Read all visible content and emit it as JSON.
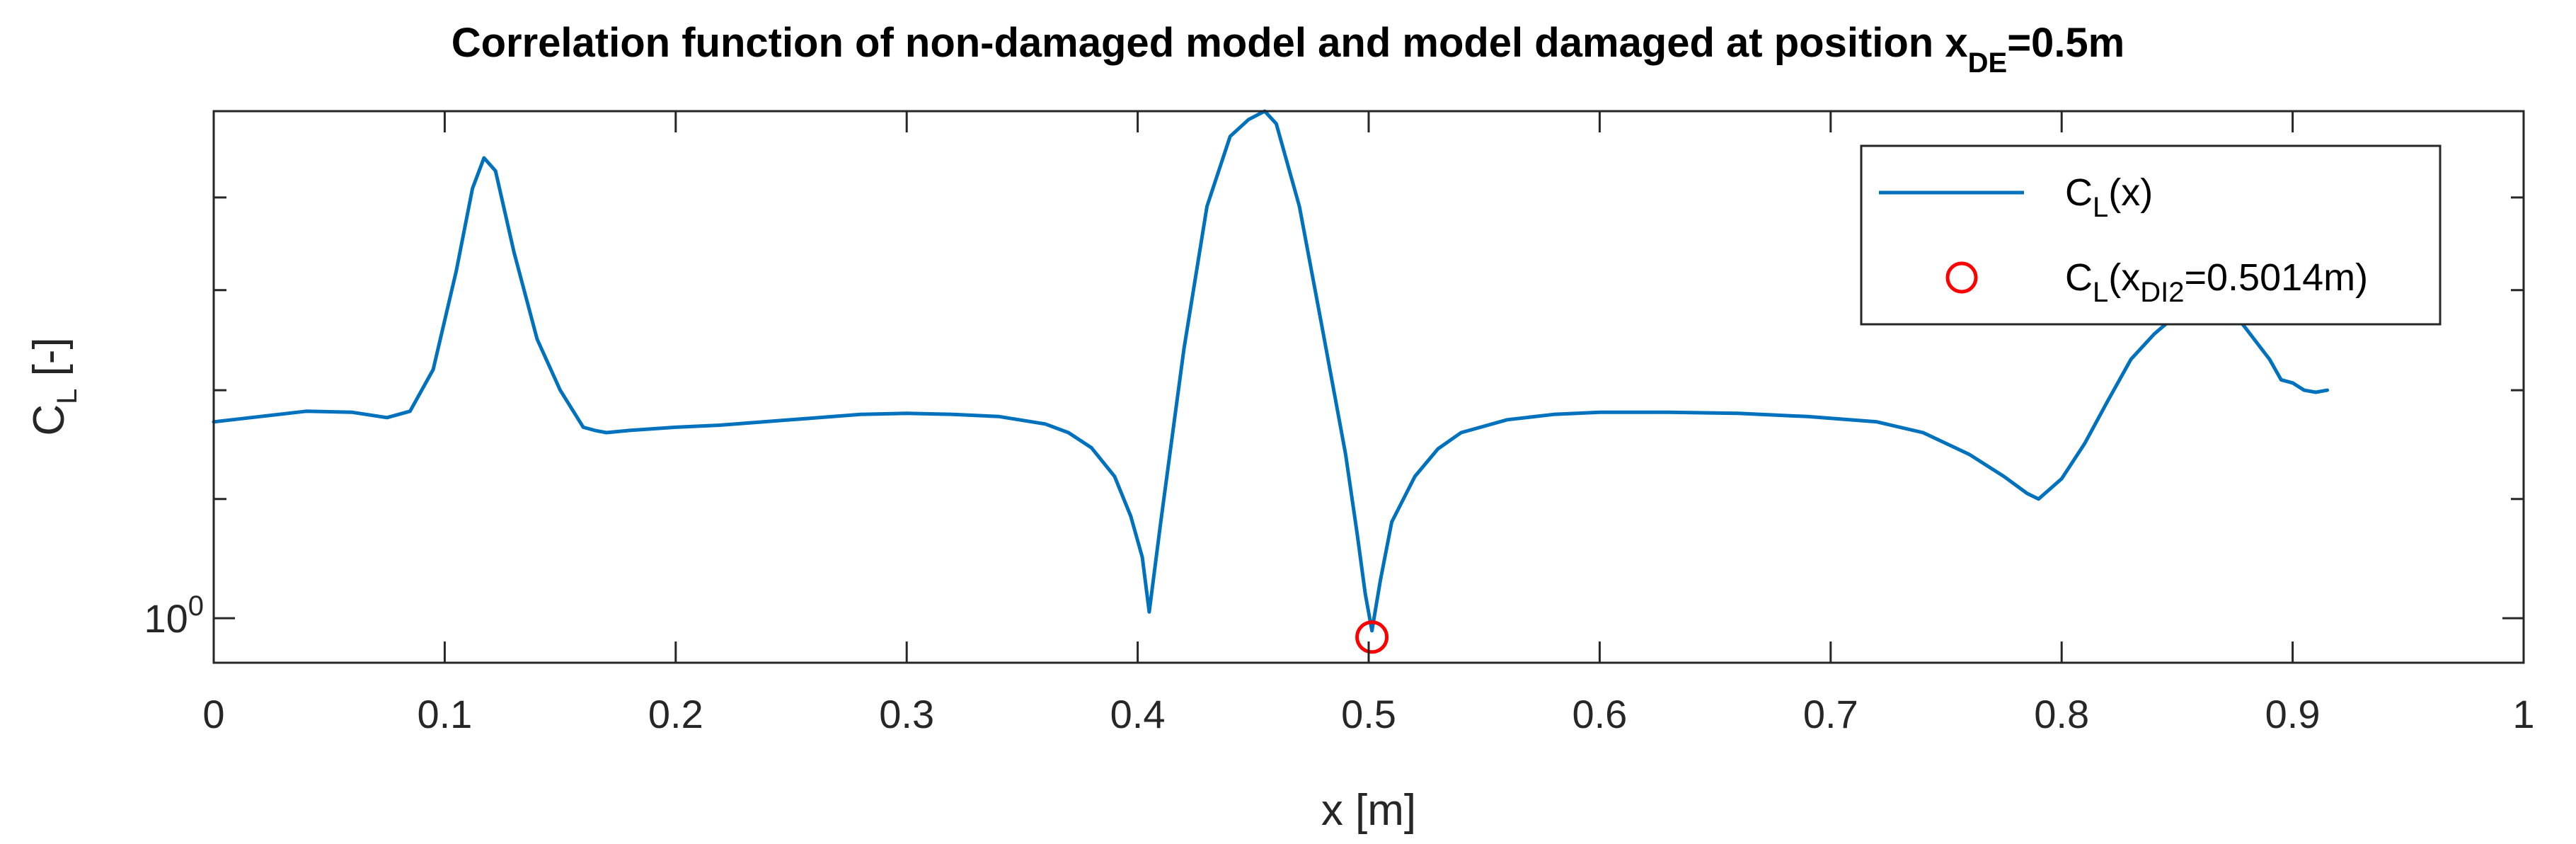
{
  "chart_data": {
    "type": "line",
    "title": {
      "main": "Correlation function of non-damaged model and model damaged at position x",
      "sub": "DE",
      "tail": "=0.5m"
    },
    "xlabel": "x [m]",
    "ylabel": {
      "main": "C",
      "sub": "L",
      "tail": " [-]"
    },
    "xlim": [
      0,
      1
    ],
    "ylim": [
      0.965,
      1.5
    ],
    "yscale": "log",
    "x_ticks": [
      0,
      0.1,
      0.2,
      0.3,
      0.4,
      0.5,
      0.6,
      0.7,
      0.8,
      0.9,
      1
    ],
    "x_tick_labels": [
      "0",
      "0.1",
      "0.2",
      "0.3",
      "0.4",
      "0.5",
      "0.6",
      "0.7",
      "0.8",
      "0.9",
      "1"
    ],
    "y_tick_labels": [
      {
        "value": 1.0,
        "base": "10",
        "exp": "0"
      }
    ],
    "grid": false,
    "legend_position": "top-right",
    "series": [
      {
        "name": {
          "main": "C",
          "sub": "L",
          "tail": "(x)"
        },
        "style": "line",
        "color": "#0072BD",
        "x": [
          0.0,
          0.02,
          0.04,
          0.06,
          0.075,
          0.085,
          0.095,
          0.105,
          0.112,
          0.117,
          0.122,
          0.13,
          0.14,
          0.15,
          0.16,
          0.165,
          0.17,
          0.18,
          0.2,
          0.22,
          0.25,
          0.28,
          0.3,
          0.32,
          0.34,
          0.36,
          0.37,
          0.38,
          0.39,
          0.397,
          0.402,
          0.405,
          0.41,
          0.42,
          0.43,
          0.44,
          0.448,
          0.455,
          0.46,
          0.47,
          0.48,
          0.49,
          0.495,
          0.4985,
          0.5014,
          0.505,
          0.51,
          0.52,
          0.53,
          0.54,
          0.56,
          0.58,
          0.6,
          0.63,
          0.66,
          0.69,
          0.72,
          0.74,
          0.76,
          0.775,
          0.785,
          0.79,
          0.8,
          0.81,
          0.82,
          0.83,
          0.84,
          0.85,
          0.86,
          0.865,
          0.87,
          0.875,
          0.88,
          0.885,
          0.89,
          0.895,
          0.9,
          0.905,
          0.91,
          0.915
        ],
        "y": [
          1.17,
          1.175,
          1.18,
          1.179,
          1.174,
          1.18,
          1.22,
          1.32,
          1.41,
          1.445,
          1.43,
          1.34,
          1.25,
          1.2,
          1.165,
          1.162,
          1.16,
          1.162,
          1.165,
          1.167,
          1.172,
          1.177,
          1.178,
          1.177,
          1.175,
          1.168,
          1.16,
          1.146,
          1.12,
          1.085,
          1.05,
          1.005,
          1.08,
          1.24,
          1.39,
          1.47,
          1.49,
          1.5,
          1.485,
          1.39,
          1.26,
          1.14,
          1.07,
          1.02,
          0.99,
          1.03,
          1.08,
          1.12,
          1.145,
          1.16,
          1.172,
          1.177,
          1.179,
          1.179,
          1.178,
          1.175,
          1.17,
          1.16,
          1.14,
          1.12,
          1.105,
          1.1,
          1.118,
          1.15,
          1.19,
          1.23,
          1.255,
          1.275,
          1.285,
          1.29,
          1.288,
          1.275,
          1.26,
          1.245,
          1.23,
          1.21,
          1.207,
          1.2,
          1.198,
          1.2
        ]
      },
      {
        "name": {
          "main": "C",
          "sub": "L",
          "tail": "(x",
          "sub2": "DI2",
          "tail2": "=0.5014m)"
        },
        "style": "marker",
        "marker": "circle",
        "color": "#FF0000",
        "x": [
          0.5014
        ],
        "y": [
          0.985
        ]
      }
    ]
  }
}
